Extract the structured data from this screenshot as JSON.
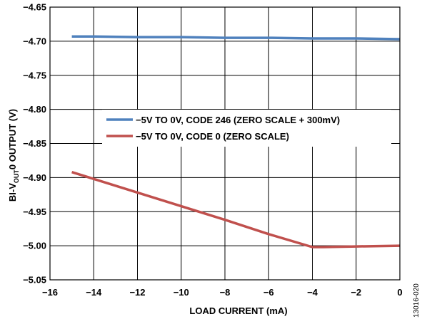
{
  "chart_data": {
    "type": "line",
    "title": "",
    "xlabel": "LOAD CURRENT (mA)",
    "ylabel": {
      "before": "BI-V",
      "sub": "OUT",
      "after": "0 OUTPUT (V)"
    },
    "xlim": [
      -16,
      0
    ],
    "ylim": [
      -5.05,
      -4.65
    ],
    "x_ticks": [
      -16,
      -14,
      -12,
      -10,
      -8,
      -6,
      -4,
      -2,
      0
    ],
    "x_tick_labels": [
      "−16",
      "−14",
      "−12",
      "−10",
      "−8",
      "−6",
      "−4",
      "−2",
      "0"
    ],
    "y_ticks": [
      -4.65,
      -4.7,
      -4.75,
      -4.8,
      -4.85,
      -4.9,
      -4.95,
      -5.0,
      -5.05
    ],
    "y_tick_labels": [
      "−4.65",
      "−4.70",
      "−4.75",
      "−4.80",
      "−4.85",
      "−4.90",
      "−4.95",
      "−5.00",
      "−5.05"
    ],
    "grid": true,
    "legend_position": "center-right",
    "series": [
      {
        "name": "−5V TO 0V, CODE 246 (ZERO SCALE + 300mV)",
        "color": "#4f81bd",
        "x": [
          -15,
          -14,
          -12,
          -10,
          -8,
          -6,
          -4,
          -2,
          0
        ],
        "y": [
          -4.693,
          -4.693,
          -4.694,
          -4.694,
          -4.695,
          -4.695,
          -4.696,
          -4.696,
          -4.697
        ]
      },
      {
        "name": "−5V TO 0V, CODE 0 (ZERO SCALE)",
        "color": "#c0504d",
        "x": [
          -15,
          -14,
          -12,
          -10,
          -8,
          -6,
          -4,
          -3.5,
          -2,
          0
        ],
        "y": [
          -4.892,
          -4.902,
          -4.922,
          -4.942,
          -4.962,
          -4.983,
          -5.002,
          -5.002,
          -5.001,
          -5.0
        ]
      }
    ]
  },
  "figure_id": "13016-020"
}
